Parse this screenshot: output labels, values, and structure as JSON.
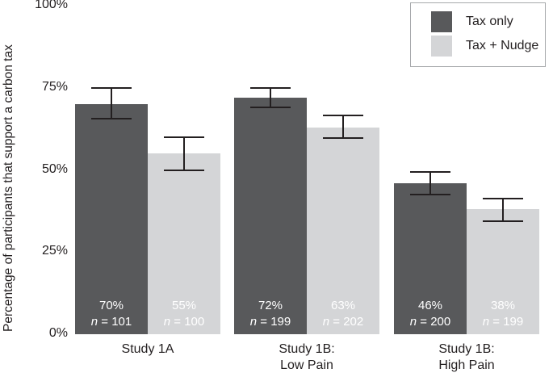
{
  "colors": {
    "background": "#ffffff",
    "tax_only_bar": "#58595b",
    "tax_nudge_bar": "#d4d5d7",
    "error_bar": "#231f20",
    "bar_label_text": "#ffffff",
    "axis_text": "#231f20",
    "legend_border": "#a7a9ac"
  },
  "legend": {
    "items": [
      {
        "label": "Tax only",
        "color": "#58595b"
      },
      {
        "label": "Tax + Nudge",
        "color": "#d4d5d7"
      }
    ]
  },
  "chart_data": {
    "type": "bar",
    "title": "",
    "xlabel": "",
    "ylabel": "Percentage of participants that support a carbon tax",
    "ylim": [
      0,
      100
    ],
    "yticks": [
      0,
      25,
      50,
      75,
      100
    ],
    "ytick_labels": [
      "0%",
      "25%",
      "50%",
      "75%",
      "100%"
    ],
    "grid": false,
    "legend_position": "top-right",
    "categories": [
      [
        "Study 1A"
      ],
      [
        "Study 1B:",
        "Low Pain"
      ],
      [
        "Study 1B:",
        "High Pain"
      ]
    ],
    "series": [
      {
        "name": "Tax only",
        "color": "#58595b",
        "values": [
          70,
          72,
          46
        ],
        "error_plus": [
          5.0,
          3.0,
          3.5
        ],
        "error_minus": [
          4.5,
          3.0,
          3.5
        ],
        "n": [
          101,
          199,
          200
        ],
        "bar_labels": [
          {
            "pct": "70%",
            "n": "n = 101"
          },
          {
            "pct": "72%",
            "n": "n = 199"
          },
          {
            "pct": "46%",
            "n": "n = 200"
          }
        ]
      },
      {
        "name": "Tax + Nudge",
        "color": "#d4d5d7",
        "values": [
          55,
          63,
          38
        ],
        "error_plus": [
          5.0,
          3.5,
          3.2
        ],
        "error_minus": [
          5.0,
          3.2,
          3.5
        ],
        "n": [
          100,
          202,
          199
        ],
        "bar_labels": [
          {
            "pct": "55%",
            "n": "n = 100"
          },
          {
            "pct": "63%",
            "n": "n = 202"
          },
          {
            "pct": "38%",
            "n": "n = 199"
          }
        ]
      }
    ]
  }
}
